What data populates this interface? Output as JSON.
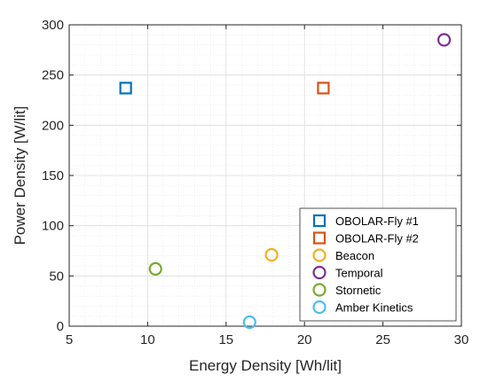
{
  "chart_data": {
    "type": "scatter",
    "title": "",
    "xlabel": "Energy Density [Wh/lit]",
    "ylabel": "Power Density [W/lit]",
    "xlim": [
      5,
      30
    ],
    "ylim": [
      0,
      300
    ],
    "xticks": [
      5,
      10,
      15,
      20,
      25,
      30
    ],
    "yticks": [
      0,
      50,
      100,
      150,
      200,
      250,
      300
    ],
    "grid": true,
    "legend_position": "bottom-right",
    "series": [
      {
        "name": "OBOLAR-Fly #1",
        "marker": "square",
        "color": "#0072BD",
        "x": [
          8.6
        ],
        "y": [
          237
        ]
      },
      {
        "name": "OBOLAR-Fly #2",
        "marker": "square",
        "color": "#D95319",
        "x": [
          21.2
        ],
        "y": [
          237
        ]
      },
      {
        "name": "Beacon",
        "marker": "circle",
        "color": "#EDB120",
        "x": [
          17.9
        ],
        "y": [
          71
        ]
      },
      {
        "name": "Temporal",
        "marker": "circle",
        "color": "#7E2F8E",
        "x": [
          28.9
        ],
        "y": [
          285
        ]
      },
      {
        "name": "Stornetic",
        "marker": "circle",
        "color": "#77AC30",
        "x": [
          10.5
        ],
        "y": [
          57
        ]
      },
      {
        "name": "Amber Kinetics",
        "marker": "circle",
        "color": "#4DBEEE",
        "x": [
          16.5
        ],
        "y": [
          4
        ]
      }
    ]
  }
}
